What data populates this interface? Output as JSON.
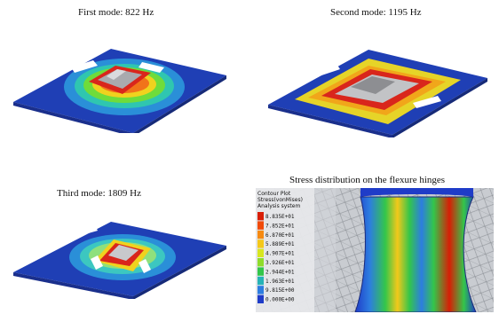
{
  "panels": {
    "first": {
      "caption": "First mode: 822 Hz"
    },
    "second": {
      "caption": "Second mode: 1195 Hz"
    },
    "third": {
      "caption": "Third mode: 1809 Hz"
    },
    "stress": {
      "caption": "Stress distribution on the flexure hinges",
      "legend": {
        "title": "Contour Plot",
        "subtitle": "Stress(vonMises)",
        "system": "Analysis system",
        "values": [
          "8.835E+01",
          "7.852E+01",
          "6.870E+01",
          "5.889E+01",
          "4.907E+01",
          "3.926E+01",
          "2.944E+01",
          "1.963E+01",
          "9.815E+00",
          "0.000E+00"
        ],
        "colors": [
          "#d81e05",
          "#f04a0a",
          "#f68a12",
          "#f4c81a",
          "#d7e61f",
          "#8fdc2a",
          "#33c64a",
          "#26b3b6",
          "#2d7de0",
          "#1f3cc8"
        ]
      }
    }
  },
  "colors": {
    "plate": "#1f3fb5",
    "plate_side": "#1a2f8c",
    "hot": "#d9261c",
    "mesh_gray": "#b9bcc2"
  }
}
